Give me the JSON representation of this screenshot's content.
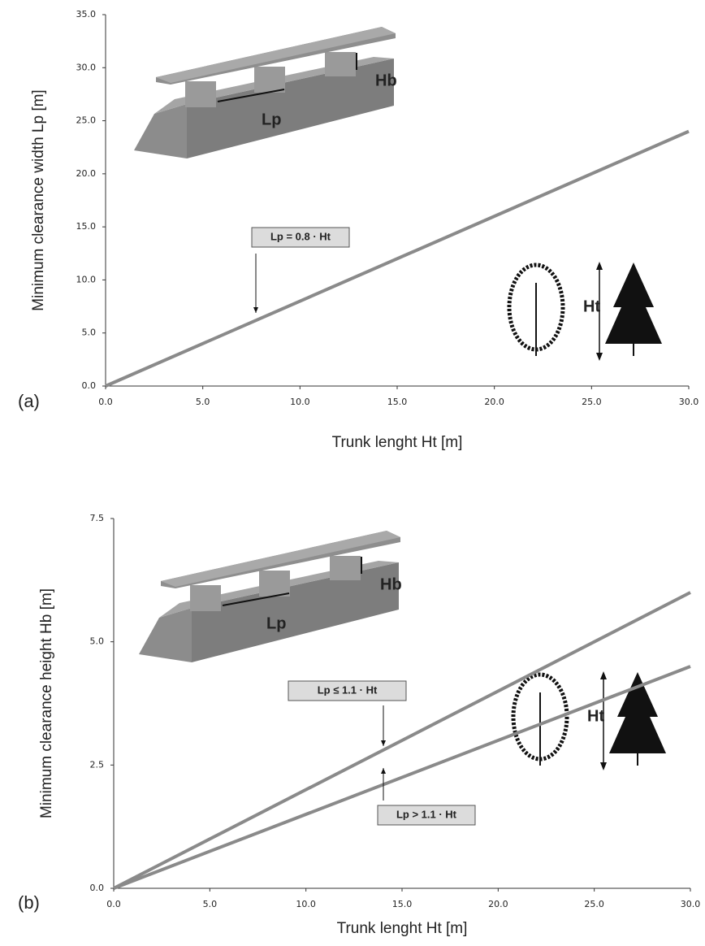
{
  "chart_data": [
    {
      "type": "line",
      "panel_label": "(a)",
      "x_label": "Trunk lenght Ht [m]",
      "y_label": "Minimum clearance width Lp [m]",
      "x": [
        0,
        30
      ],
      "series": [
        {
          "name": "Lp = 0.8 · Ht",
          "color": "#8a8a8a",
          "values": [
            0,
            24
          ]
        }
      ],
      "annotations": [
        "Lp = 0.8 · Ht"
      ],
      "illustration_labels": [
        "Hb",
        "Lp",
        "Ht"
      ],
      "xlim": [
        0,
        30
      ],
      "ylim": [
        0,
        35
      ],
      "xticks": [
        {
          "value": 0,
          "label": "0.0"
        },
        {
          "value": 5,
          "label": "5.0"
        },
        {
          "value": 10,
          "label": "10.0"
        },
        {
          "value": 15,
          "label": "15.0"
        },
        {
          "value": 20,
          "label": "20.0"
        },
        {
          "value": 25,
          "label": "25.0"
        },
        {
          "value": 30,
          "label": "30.0"
        }
      ],
      "yticks": [
        {
          "value": 0,
          "label": "0.0"
        },
        {
          "value": 5,
          "label": "5.0"
        },
        {
          "value": 10,
          "label": "10.0"
        },
        {
          "value": 15,
          "label": "15.0"
        },
        {
          "value": 20,
          "label": "20.0"
        },
        {
          "value": 25,
          "label": "25.0"
        },
        {
          "value": 30,
          "label": "30.0"
        },
        {
          "value": 35,
          "label": "35.0"
        }
      ]
    },
    {
      "type": "line",
      "panel_label": "(b)",
      "x_label": "Trunk lenght Ht [m]",
      "y_label": "Minimum clearance height Hb [m]",
      "x": [
        0,
        30
      ],
      "series": [
        {
          "name": "Lp ≤ 1.1 · Ht",
          "color": "#8a8a8a",
          "values": [
            0,
            6
          ]
        },
        {
          "name": "Lp > 1.1 · Ht",
          "color": "#8a8a8a",
          "values": [
            0,
            4.5
          ]
        }
      ],
      "annotations": [
        "Lp ≤ 1.1 · Ht",
        "Lp > 1.1 · Ht"
      ],
      "illustration_labels": [
        "Hb",
        "Lp",
        "Ht"
      ],
      "xlim": [
        0,
        30
      ],
      "ylim": [
        0,
        7.5
      ],
      "xticks": [
        {
          "value": 0,
          "label": "0.0"
        },
        {
          "value": 5,
          "label": "5.0"
        },
        {
          "value": 10,
          "label": "10.0"
        },
        {
          "value": 15,
          "label": "15.0"
        },
        {
          "value": 20,
          "label": "20.0"
        },
        {
          "value": 25,
          "label": "25.0"
        },
        {
          "value": 30,
          "label": "30.0"
        }
      ],
      "yticks": [
        {
          "value": 0,
          "label": "0.0"
        },
        {
          "value": 2.5,
          "label": "2.5"
        },
        {
          "value": 5,
          "label": "5.0"
        },
        {
          "value": 7.5,
          "label": "7.5"
        }
      ]
    }
  ]
}
